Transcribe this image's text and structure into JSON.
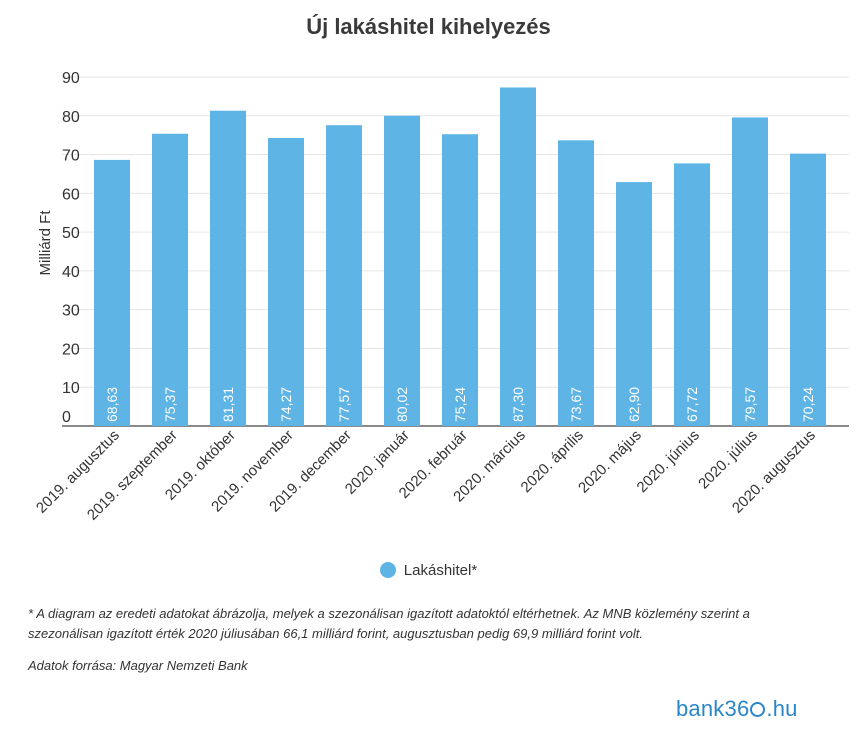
{
  "chart_data": {
    "type": "bar",
    "title": "Új lakáshitel kihelyezés",
    "ylabel": "Milliárd Ft",
    "xlabel": "",
    "ylim": [
      0,
      90
    ],
    "yticks": [
      0,
      10,
      20,
      30,
      40,
      50,
      60,
      70,
      80,
      90
    ],
    "grid": true,
    "legend_position": "bottom",
    "categories": [
      "2019. augusztus",
      "2019. szeptember",
      "2019. október",
      "2019. november",
      "2019. december",
      "2020. január",
      "2020. február",
      "2020. március",
      "2020. április",
      "2020. május",
      "2020. június",
      "2020. július",
      "2020. augusztus"
    ],
    "series": [
      {
        "name": "Lakáshitel*",
        "color": "#5db4e5",
        "values": [
          68.63,
          75.37,
          81.31,
          74.27,
          77.57,
          80.02,
          75.24,
          87.3,
          73.67,
          62.9,
          67.72,
          79.57,
          70.24
        ],
        "labels": [
          "68,63",
          "75,37",
          "81,31",
          "74,27",
          "77,57",
          "80,02",
          "75,24",
          "87,30",
          "73,67",
          "62,90",
          "67,72",
          "79,57",
          "70,24"
        ]
      }
    ]
  },
  "footnote": "* A diagram az eredeti adatokat ábrázolja, melyek a szezonálisan igazított adatoktól eltérhetnek. Az MNB közlemény szerint a szezonálisan igazított érték 2020 júliusában 66,1 milliárd forint, augusztusban pedig 69,9 milliárd forint volt.",
  "source": "Adatok forrása: Magyar Nemzeti Bank",
  "brand": {
    "pre": "bank36",
    "post": ".hu"
  }
}
